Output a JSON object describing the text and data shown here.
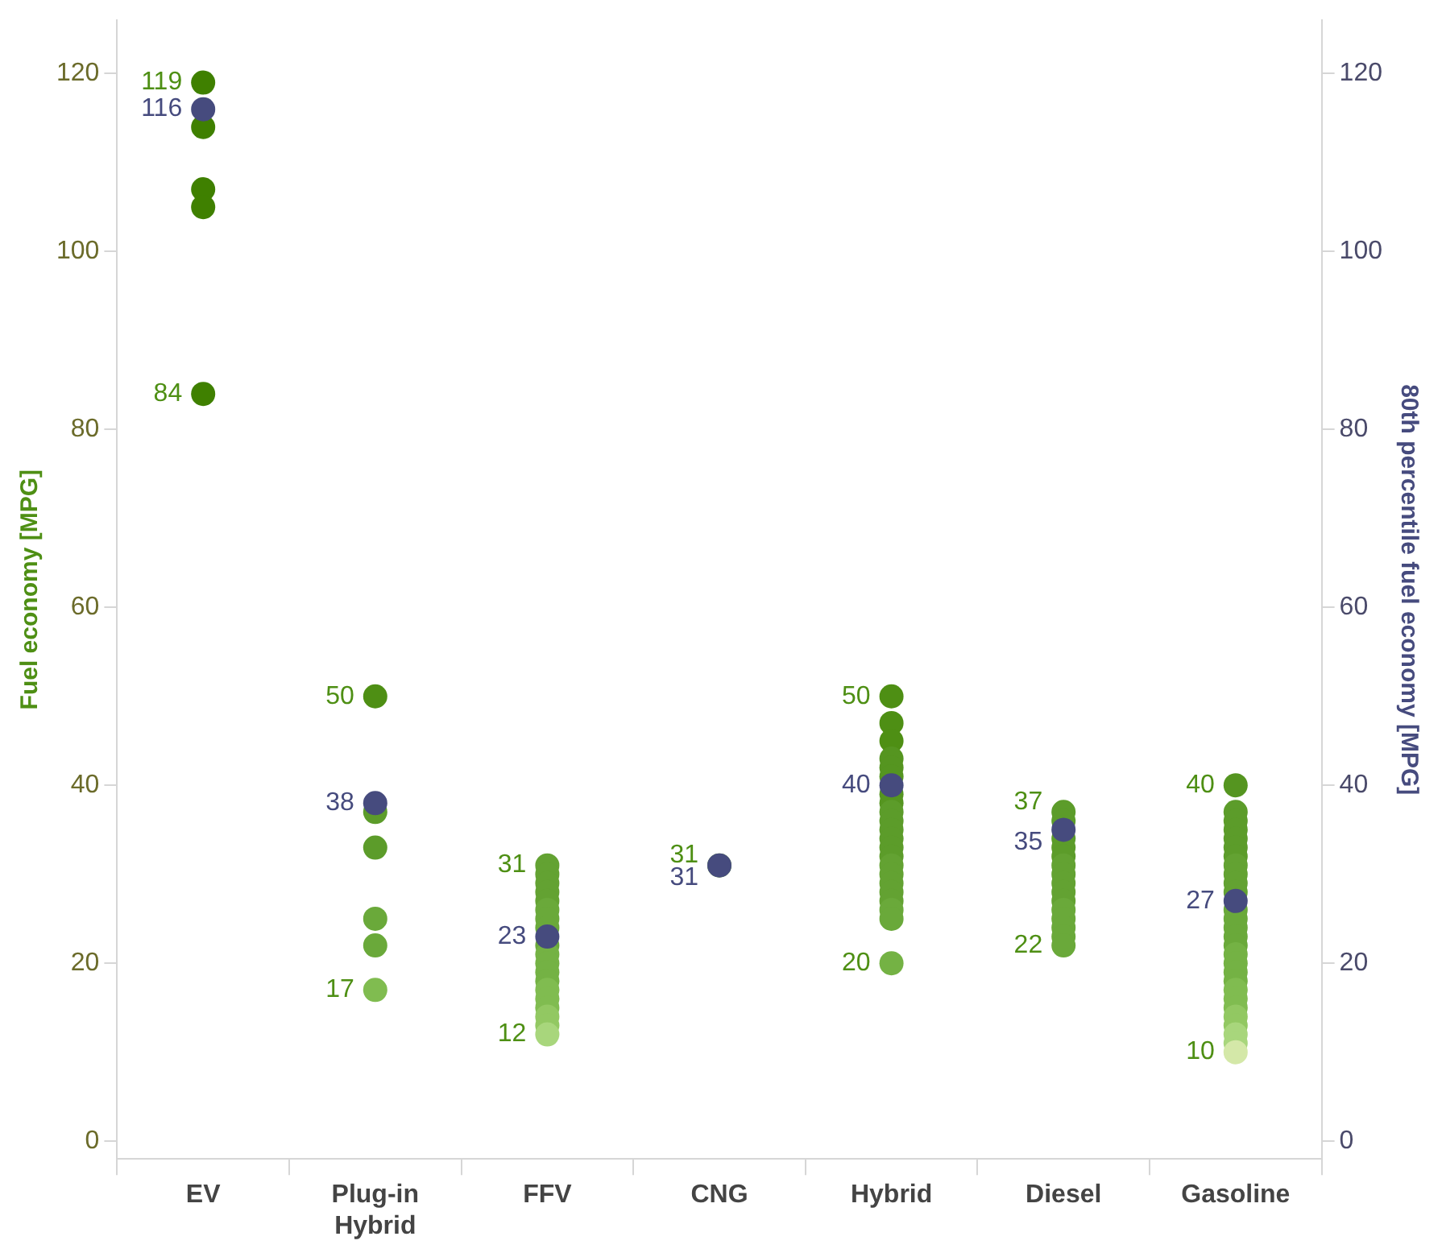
{
  "chart_data": {
    "type": "scatter",
    "ylabel": "Fuel economy [MPG]",
    "y2label": "80th percentile fuel economy [MPG]",
    "categories": [
      "EV",
      "Plug-in Hybrid",
      "FFV",
      "CNG",
      "Hybrid",
      "Diesel",
      "Gasoline"
    ],
    "ylim": [
      -2,
      126
    ],
    "yticks": [
      0,
      20,
      40,
      60,
      80,
      100,
      120
    ],
    "y2lim": [
      -2,
      126
    ],
    "y2ticks": [
      0,
      20,
      40,
      60,
      80,
      100,
      120
    ],
    "grid": false,
    "legend": false,
    "marker": "circle",
    "series": [
      {
        "color": "#4e8f14",
        "x": [
          "EV",
          "EV",
          "EV",
          "EV",
          "EV",
          "Plug-in Hybrid",
          "Plug-in Hybrid",
          "Plug-in Hybrid",
          "Plug-in Hybrid",
          "Plug-in Hybrid",
          "Plug-in Hybrid",
          "FFV",
          "FFV",
          "FFV",
          "FFV",
          "FFV",
          "FFV",
          "FFV",
          "FFV",
          "FFV",
          "FFV",
          "FFV",
          "FFV",
          "FFV",
          "FFV",
          "FFV",
          "FFV",
          "FFV",
          "FFV",
          "FFV",
          "FFV",
          "CNG",
          "Hybrid",
          "Hybrid",
          "Hybrid",
          "Hybrid",
          "Hybrid",
          "Hybrid",
          "Hybrid",
          "Hybrid",
          "Hybrid",
          "Hybrid",
          "Hybrid",
          "Hybrid",
          "Hybrid",
          "Hybrid",
          "Hybrid",
          "Hybrid",
          "Hybrid",
          "Hybrid",
          "Hybrid",
          "Hybrid",
          "Hybrid",
          "Hybrid",
          "Hybrid",
          "Diesel",
          "Diesel",
          "Diesel",
          "Diesel",
          "Diesel",
          "Diesel",
          "Diesel",
          "Diesel",
          "Diesel",
          "Diesel",
          "Diesel",
          "Diesel",
          "Diesel",
          "Diesel",
          "Diesel",
          "Diesel",
          "Gasoline",
          "Gasoline",
          "Gasoline",
          "Gasoline",
          "Gasoline",
          "Gasoline",
          "Gasoline",
          "Gasoline",
          "Gasoline",
          "Gasoline",
          "Gasoline",
          "Gasoline",
          "Gasoline",
          "Gasoline",
          "Gasoline",
          "Gasoline",
          "Gasoline",
          "Gasoline",
          "Gasoline",
          "Gasoline",
          "Gasoline",
          "Gasoline",
          "Gasoline",
          "Gasoline",
          "Gasoline",
          "Gasoline",
          "Gasoline",
          "Gasoline",
          "Gasoline"
        ],
        "values": [
          119,
          114,
          107,
          105,
          84,
          50,
          37,
          33,
          25,
          22,
          17,
          31,
          30,
          29,
          28,
          27,
          26,
          25,
          24,
          null,
          22,
          21,
          20,
          19,
          18,
          17,
          16,
          15,
          14,
          13,
          12,
          31,
          50,
          47,
          45,
          43,
          42,
          41,
          null,
          39,
          38,
          37,
          36,
          35,
          34,
          33,
          32,
          31,
          30,
          29,
          28,
          27,
          26,
          25,
          20,
          37,
          36,
          null,
          34,
          33,
          32,
          31,
          30,
          29,
          28,
          27,
          26,
          25,
          24,
          23,
          22,
          40,
          37,
          36,
          35,
          34,
          33,
          32,
          31,
          30,
          29,
          28,
          null,
          26,
          25,
          24,
          23,
          22,
          21,
          20,
          19,
          18,
          17,
          16,
          15,
          14,
          13,
          12,
          11,
          10
        ],
        "colors": [
          "#3f8000",
          "#3f8000",
          "#3f8000",
          "#3f8000",
          "#3f8000",
          "#4e8f14",
          "#5c9c2a",
          "#5c9c2a",
          "#6aa93a",
          "#6aa93a",
          "#80bc50",
          "#63a232",
          "#63a232",
          "#63a232",
          "#63a232",
          "#63a232",
          "#6aa93a",
          "#6aa93a",
          "#6aa93a",
          "#6aa93a",
          "#6aa93a",
          "#74b244",
          "#74b244",
          "#74b244",
          "#74b244",
          "#80bc50",
          "#80bc50",
          "#80bc50",
          "#92c862",
          "#92c862",
          "#a8d67c",
          "#63a232",
          "#4e8f14",
          "#4e8f14",
          "#4e8f14",
          "#559520",
          "#559520",
          "#559520",
          "#559520",
          "#559520",
          "#559520",
          "#5c9c2a",
          "#5c9c2a",
          "#5c9c2a",
          "#5c9c2a",
          "#5c9c2a",
          "#5c9c2a",
          "#63a232",
          "#63a232",
          "#63a232",
          "#63a232",
          "#63a232",
          "#6aa93a",
          "#6aa93a",
          "#74b244",
          "#5c9c2a",
          "#5c9c2a",
          "#5c9c2a",
          "#5c9c2a",
          "#5c9c2a",
          "#5c9c2a",
          "#63a232",
          "#63a232",
          "#63a232",
          "#63a232",
          "#63a232",
          "#6aa93a",
          "#6aa93a",
          "#6aa93a",
          "#6aa93a",
          "#6aa93a",
          "#559520",
          "#5c9c2a",
          "#5c9c2a",
          "#5c9c2a",
          "#5c9c2a",
          "#5c9c2a",
          "#5c9c2a",
          "#63a232",
          "#63a232",
          "#63a232",
          "#63a232",
          "#63a232",
          "#6aa93a",
          "#6aa93a",
          "#6aa93a",
          "#6aa93a",
          "#6aa93a",
          "#74b244",
          "#74b244",
          "#74b244",
          "#74b244",
          "#80bc50",
          "#80bc50",
          "#80bc50",
          "#92c862",
          "#92c862",
          "#a8d67c",
          "#a8d67c",
          "#d4e8a8"
        ],
        "value_labels": [
          "119",
          null,
          null,
          null,
          "84",
          "50",
          null,
          null,
          null,
          null,
          "17",
          "31",
          null,
          null,
          null,
          null,
          null,
          null,
          null,
          null,
          null,
          null,
          null,
          null,
          null,
          null,
          null,
          null,
          null,
          null,
          "12",
          "31",
          "50",
          null,
          null,
          null,
          null,
          null,
          null,
          null,
          null,
          null,
          null,
          null,
          null,
          null,
          null,
          null,
          null,
          null,
          null,
          null,
          null,
          null,
          "20",
          "37",
          null,
          null,
          null,
          null,
          null,
          null,
          null,
          null,
          null,
          null,
          null,
          null,
          null,
          null,
          "22",
          "40",
          null,
          null,
          null,
          null,
          null,
          null,
          null,
          null,
          null,
          null,
          null,
          null,
          null,
          null,
          null,
          null,
          null,
          null,
          null,
          null,
          null,
          null,
          null,
          null,
          null,
          null,
          null,
          "10"
        ]
      },
      {
        "axis": "y2",
        "color": "#464b7e",
        "values": [
          116,
          38,
          23,
          31,
          40,
          35,
          27
        ],
        "value_labels": [
          "116",
          "38",
          "23",
          "31",
          "40",
          "35",
          "27"
        ]
      }
    ]
  }
}
